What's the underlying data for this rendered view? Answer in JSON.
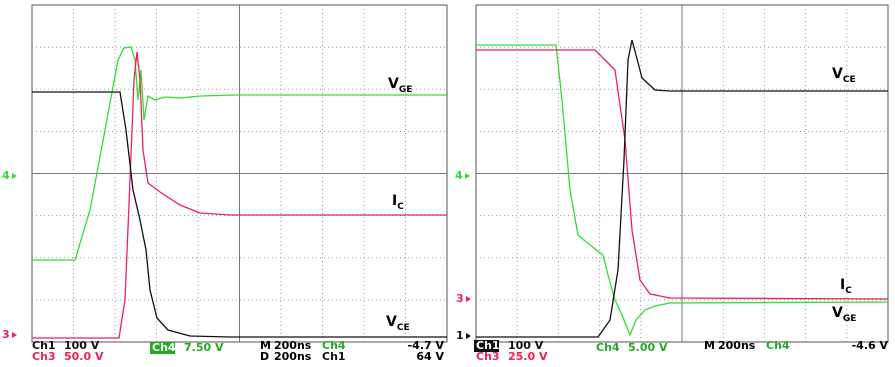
{
  "left_panel": {
    "trace_labels": [
      {
        "main": "V",
        "sub": "GE"
      },
      {
        "main": "I",
        "sub": "C"
      },
      {
        "main": "V",
        "sub": "CE"
      }
    ],
    "markers": [
      "4",
      "3"
    ],
    "status": [
      {
        "channel": "Ch1",
        "scale": "100 V"
      },
      {
        "channel": "Ch3",
        "scale": "50.0 V"
      },
      {
        "channel": "Ch4",
        "scale": "7.50 V"
      }
    ],
    "timebase": [
      {
        "mode": "M",
        "time": "200ns",
        "source": "Ch4",
        "level": "-4.7 V"
      },
      {
        "mode": "D",
        "time": "200ns",
        "source": "Ch1",
        "level": "64 V"
      }
    ]
  },
  "right_panel": {
    "trace_labels": [
      {
        "main": "V",
        "sub": "CE"
      },
      {
        "main": "I",
        "sub": "C"
      },
      {
        "main": "V",
        "sub": "GE"
      }
    ],
    "markers": [
      "4",
      "3",
      "1"
    ],
    "status": [
      {
        "channel": "Ch1",
        "scale": "100 V"
      },
      {
        "channel": "Ch3",
        "scale": "25.0 V"
      },
      {
        "channel": "Ch4",
        "scale": "5.00 V"
      }
    ],
    "timebase": [
      {
        "mode": "M",
        "time": "200ns",
        "source": "Ch4",
        "level": "-4.6 V"
      }
    ]
  }
}
